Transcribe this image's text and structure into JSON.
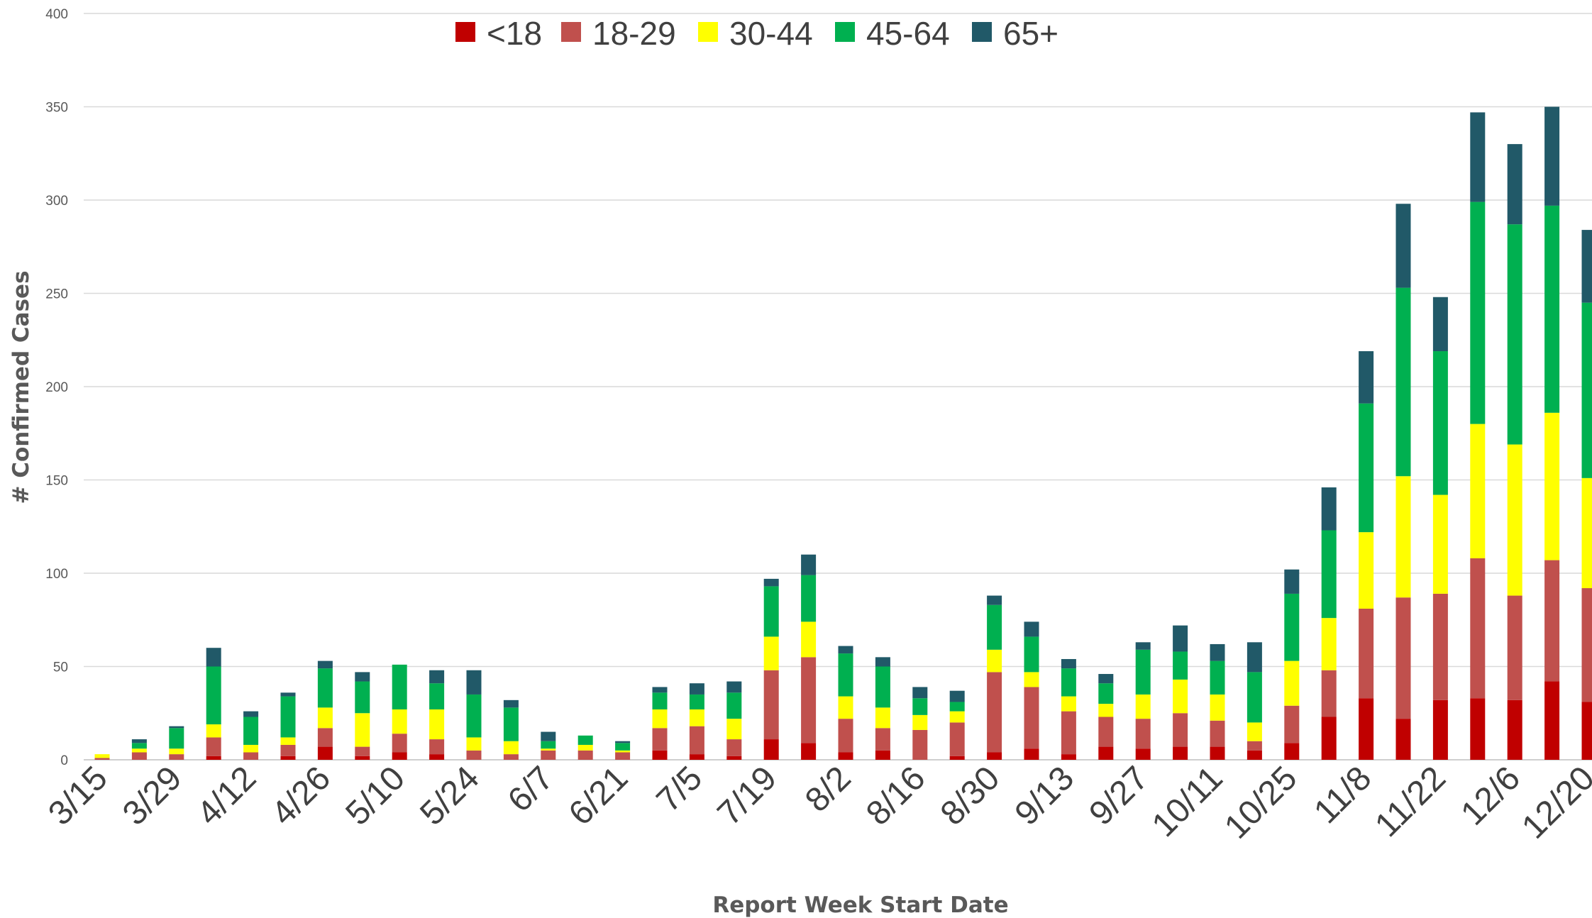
{
  "chart_data": {
    "type": "bar",
    "stacked": true,
    "title": "",
    "xlabel": "Report Week Start Date",
    "ylabel": "# Confirmed Cases",
    "ylim": [
      0,
      400
    ],
    "yticks": [
      0,
      50,
      100,
      150,
      200,
      250,
      300,
      350,
      400
    ],
    "grid": true,
    "legend_position": "top",
    "categories": [
      "3/15",
      "3/22",
      "3/29",
      "4/5",
      "4/12",
      "4/19",
      "4/26",
      "5/3",
      "5/10",
      "5/17",
      "5/24",
      "5/31",
      "6/7",
      "6/14",
      "6/21",
      "6/28",
      "7/5",
      "7/12",
      "7/19",
      "7/26",
      "8/2",
      "8/9",
      "8/16",
      "8/23",
      "8/30",
      "9/6",
      "9/13",
      "9/20",
      "9/27",
      "10/4",
      "10/11",
      "10/18",
      "10/25",
      "11/1",
      "11/8",
      "11/15",
      "11/22",
      "11/29",
      "12/6",
      "12/13",
      "12/20"
    ],
    "tick_labels": [
      "3/15",
      "3/29",
      "4/12",
      "4/26",
      "5/10",
      "5/24",
      "6/7",
      "6/21",
      "7/5",
      "7/19",
      "8/2",
      "8/16",
      "8/30",
      "9/13",
      "9/27",
      "10/11",
      "10/25",
      "11/8",
      "11/22",
      "12/6",
      "12/20"
    ],
    "series": [
      {
        "name": "<18",
        "color": "#C00000",
        "values": [
          0,
          0,
          0,
          2,
          0,
          2,
          7,
          2,
          4,
          3,
          0,
          0,
          0,
          0,
          0,
          5,
          3,
          2,
          11,
          9,
          4,
          5,
          0,
          2,
          4,
          6,
          3,
          7,
          6,
          7,
          7,
          5,
          9,
          23,
          33,
          22,
          32,
          33,
          32,
          42,
          31
        ]
      },
      {
        "name": "18-29",
        "color": "#C0504D",
        "values": [
          1,
          4,
          3,
          10,
          4,
          6,
          10,
          5,
          10,
          8,
          5,
          3,
          5,
          5,
          4,
          12,
          15,
          9,
          37,
          46,
          18,
          12,
          16,
          18,
          43,
          33,
          23,
          16,
          16,
          18,
          14,
          5,
          20,
          25,
          48,
          65,
          57,
          75,
          56,
          65,
          61
        ]
      },
      {
        "name": "30-44",
        "color": "#FFFF00",
        "values": [
          2,
          2,
          3,
          7,
          4,
          4,
          11,
          18,
          13,
          16,
          7,
          7,
          1,
          3,
          1,
          10,
          9,
          11,
          18,
          19,
          12,
          11,
          8,
          6,
          12,
          8,
          8,
          7,
          13,
          18,
          14,
          10,
          24,
          28,
          41,
          65,
          53,
          72,
          81,
          79,
          59
        ]
      },
      {
        "name": "45-64",
        "color": "#00B050",
        "values": [
          0,
          3,
          11,
          31,
          15,
          22,
          21,
          17,
          24,
          14,
          23,
          18,
          4,
          5,
          4,
          9,
          8,
          14,
          27,
          25,
          23,
          22,
          9,
          5,
          24,
          19,
          15,
          11,
          24,
          15,
          18,
          27,
          36,
          47,
          69,
          101,
          77,
          119,
          118,
          111,
          94
        ]
      },
      {
        "name": "65+",
        "color": "#215968",
        "values": [
          0,
          2,
          1,
          10,
          3,
          2,
          4,
          5,
          0,
          7,
          13,
          4,
          5,
          0,
          1,
          3,
          6,
          6,
          4,
          11,
          4,
          5,
          6,
          6,
          5,
          8,
          5,
          5,
          4,
          14,
          9,
          16,
          13,
          23,
          28,
          45,
          29,
          48,
          43,
          53,
          39
        ]
      }
    ]
  }
}
